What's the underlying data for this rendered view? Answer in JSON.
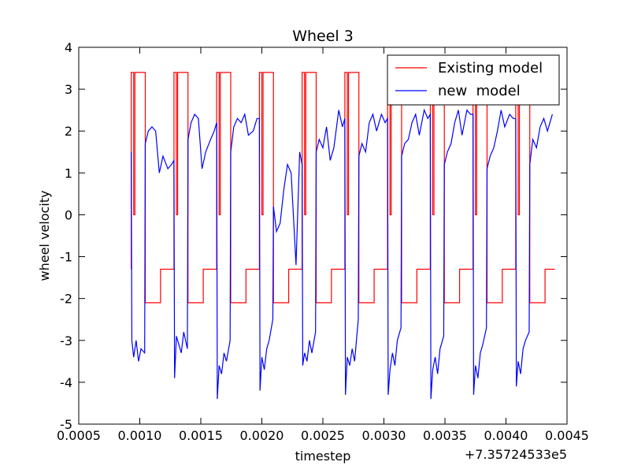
{
  "chart_data": {
    "type": "line",
    "title": "Wheel 3",
    "xlabel": "timestep",
    "ylabel": "wheel velocity",
    "x_offset_text": "+7.35724533e5",
    "xlim": [
      0.0005,
      0.0045
    ],
    "xticks": [
      0.0005,
      {
        "value": 0.001,
        "label": "0.0010"
      },
      {
        "value": 0.0015,
        "label": "0.0015"
      },
      {
        "value": 0.002,
        "label": "0.0020"
      },
      {
        "value": 0.0025,
        "label": "0.0025"
      },
      {
        "value": 0.003,
        "label": "0.0030"
      },
      {
        "value": 0.0035,
        "label": "0.0035"
      },
      {
        "value": 0.004,
        "label": "0.0040"
      },
      {
        "value": 0.0045,
        "label": "0.0045"
      }
    ],
    "ylim": [
      -5,
      4
    ],
    "yticks": [
      4,
      3,
      2,
      1,
      0,
      -1,
      -2,
      -3,
      -4,
      -5
    ],
    "legend": "upper right",
    "series": [
      {
        "name": "Existing model",
        "color": "#ff0000",
        "x": [
          0.00093,
          0.00093,
          0.00095,
          0.00095,
          0.00096,
          0.00096,
          0.001045,
          0.001045,
          0.00117,
          0.00117,
          0.00128,
          0.00128,
          0.0013,
          0.0013,
          0.00131,
          0.00131,
          0.001395,
          0.001395,
          0.00152,
          0.00152,
          0.00163,
          0.00163,
          0.00165,
          0.00165,
          0.00166,
          0.00166,
          0.001745,
          0.001745,
          0.00187,
          0.00187,
          0.00198,
          0.00198,
          0.002,
          0.002,
          0.00201,
          0.00201,
          0.002095,
          0.002095,
          0.00222,
          0.00222,
          0.00233,
          0.00233,
          0.00235,
          0.00235,
          0.00236,
          0.00236,
          0.002445,
          0.002445,
          0.00257,
          0.00257,
          0.00268,
          0.00268,
          0.0027,
          0.0027,
          0.00271,
          0.00271,
          0.002795,
          0.002795,
          0.00292,
          0.00292,
          0.00303,
          0.00303,
          0.00305,
          0.00305,
          0.00306,
          0.00306,
          0.003145,
          0.003145,
          0.00327,
          0.00327,
          0.00338,
          0.00338,
          0.0034,
          0.0034,
          0.00341,
          0.00341,
          0.003495,
          0.003495,
          0.00362,
          0.00362,
          0.00373,
          0.00373,
          0.00375,
          0.00375,
          0.00376,
          0.00376,
          0.003845,
          0.003845,
          0.00397,
          0.00397,
          0.00408,
          0.00408,
          0.0041,
          0.0041,
          0.00411,
          0.00411,
          0.004195,
          0.004195,
          0.00432,
          0.00432,
          0.0044
        ],
        "values": [
          -1.3,
          3.4,
          3.4,
          0,
          0,
          3.4,
          3.4,
          -2.1,
          -2.1,
          -1.3,
          -1.3,
          3.4,
          3.4,
          0,
          0,
          3.4,
          3.4,
          -2.1,
          -2.1,
          -1.3,
          -1.3,
          3.4,
          3.4,
          0,
          0,
          3.4,
          3.4,
          -2.1,
          -2.1,
          -1.3,
          -1.3,
          3.4,
          3.4,
          0,
          0,
          3.4,
          3.4,
          -2.1,
          -2.1,
          -1.3,
          -1.3,
          3.4,
          3.4,
          0,
          0,
          3.4,
          3.4,
          -2.1,
          -2.1,
          -1.3,
          -1.3,
          3.4,
          3.4,
          0,
          0,
          3.4,
          3.4,
          -2.1,
          -2.1,
          -1.3,
          -1.3,
          3.4,
          3.4,
          0,
          0,
          3.4,
          3.4,
          -2.1,
          -2.1,
          -1.3,
          -1.3,
          3.4,
          3.4,
          0,
          0,
          3.4,
          3.4,
          -2.1,
          -2.1,
          -1.3,
          -1.3,
          3.4,
          3.4,
          0,
          0,
          3.4,
          3.4,
          -2.1,
          -2.1,
          -1.3,
          -1.3,
          3.4,
          3.4,
          0,
          0,
          3.4,
          3.4,
          -2.1,
          -2.1,
          -1.3,
          -1.3
        ]
      },
      {
        "name": "new  model",
        "color": "#0000ff",
        "x": [
          0.00093,
          0.000935,
          0.00095,
          0.00097,
          0.00099,
          0.00101,
          0.00104,
          0.001045,
          0.00107,
          0.0011,
          0.00113,
          0.00116,
          0.00119,
          0.00123,
          0.00126,
          0.00128,
          0.001285,
          0.0013,
          0.00132,
          0.00134,
          0.00136,
          0.00139,
          0.001395,
          0.00142,
          0.00145,
          0.00148,
          0.00151,
          0.00154,
          0.00158,
          0.00161,
          0.00163,
          0.001635,
          0.00165,
          0.00167,
          0.00169,
          0.00171,
          0.00174,
          0.001745,
          0.00177,
          0.0018,
          0.00183,
          0.00186,
          0.00189,
          0.00193,
          0.00196,
          0.00198,
          0.001985,
          0.002,
          0.00202,
          0.00204,
          0.00206,
          0.00209,
          0.002095,
          0.00212,
          0.00215,
          0.00218,
          0.00221,
          0.00224,
          0.00228,
          0.00231,
          0.00233,
          0.002335,
          0.00235,
          0.00237,
          0.00239,
          0.00241,
          0.00244,
          0.002445,
          0.00247,
          0.0025,
          0.00253,
          0.00256,
          0.00259,
          0.00263,
          0.00266,
          0.00268,
          0.002685,
          0.0027,
          0.00272,
          0.00274,
          0.00276,
          0.00279,
          0.002795,
          0.00282,
          0.00285,
          0.00288,
          0.00291,
          0.00294,
          0.00298,
          0.00301,
          0.00303,
          0.003035,
          0.00305,
          0.00307,
          0.00309,
          0.00311,
          0.00314,
          0.003145,
          0.00317,
          0.0032,
          0.00323,
          0.00326,
          0.00329,
          0.00333,
          0.00336,
          0.00338,
          0.003385,
          0.0034,
          0.00342,
          0.00344,
          0.00346,
          0.00349,
          0.003495,
          0.00352,
          0.00355,
          0.00358,
          0.00361,
          0.00364,
          0.00368,
          0.00371,
          0.00373,
          0.003735,
          0.00375,
          0.00377,
          0.00379,
          0.00381,
          0.00384,
          0.003845,
          0.00387,
          0.0039,
          0.00393,
          0.00396,
          0.00399,
          0.00403,
          0.00406,
          0.00408,
          0.004085,
          0.0041,
          0.00412,
          0.00414,
          0.00416,
          0.00419,
          0.004195,
          0.00422,
          0.00425,
          0.00428,
          0.00431,
          0.00434,
          0.00438
        ],
        "values": [
          1.5,
          -3.0,
          -3.4,
          -3.0,
          -3.5,
          -3.2,
          -3.3,
          1.7,
          2.0,
          2.1,
          2.0,
          1.0,
          1.4,
          1.1,
          1.2,
          1.3,
          -3.9,
          -2.9,
          -3.1,
          -3.3,
          -2.8,
          -3.2,
          1.8,
          2.2,
          2.4,
          2.3,
          1.1,
          1.5,
          1.8,
          2.0,
          2.2,
          -4.4,
          -3.6,
          -3.8,
          -3.3,
          -3.5,
          -3.0,
          1.5,
          2.1,
          2.3,
          2.2,
          2.4,
          1.9,
          2.0,
          2.3,
          2.3,
          -4.2,
          -3.4,
          -3.7,
          -3.2,
          -3.0,
          -2.5,
          0.2,
          -0.4,
          -0.2,
          0.6,
          1.2,
          1.0,
          -1.2,
          1.5,
          1.2,
          -3.6,
          -3.3,
          -3.5,
          -3.0,
          -3.3,
          -2.8,
          1.5,
          1.8,
          1.6,
          2.1,
          1.3,
          1.6,
          2.5,
          2.1,
          2.3,
          -4.3,
          -3.4,
          -3.6,
          -3.2,
          -3.5,
          -2.5,
          1.4,
          1.7,
          1.5,
          2.2,
          2.4,
          2.0,
          2.4,
          2.2,
          2.3,
          -4.3,
          -3.7,
          -3.3,
          -3.6,
          -3.0,
          -2.7,
          1.4,
          1.7,
          1.8,
          2.2,
          2.4,
          1.9,
          2.5,
          2.3,
          2.4,
          -4.4,
          -3.7,
          -3.4,
          -3.8,
          -3.2,
          -2.9,
          1.2,
          1.5,
          1.7,
          2.2,
          2.5,
          1.9,
          2.5,
          2.4,
          2.4,
          -4.3,
          -3.6,
          -3.9,
          -3.3,
          -3.1,
          -2.7,
          1.1,
          1.4,
          1.6,
          2.0,
          2.5,
          2.1,
          2.4,
          2.3,
          2.3,
          -4.1,
          -3.5,
          -3.8,
          -3.2,
          -3.0,
          -2.8,
          1.2,
          1.8,
          1.6,
          2.1,
          2.3,
          2.0,
          2.4
        ]
      }
    ]
  }
}
